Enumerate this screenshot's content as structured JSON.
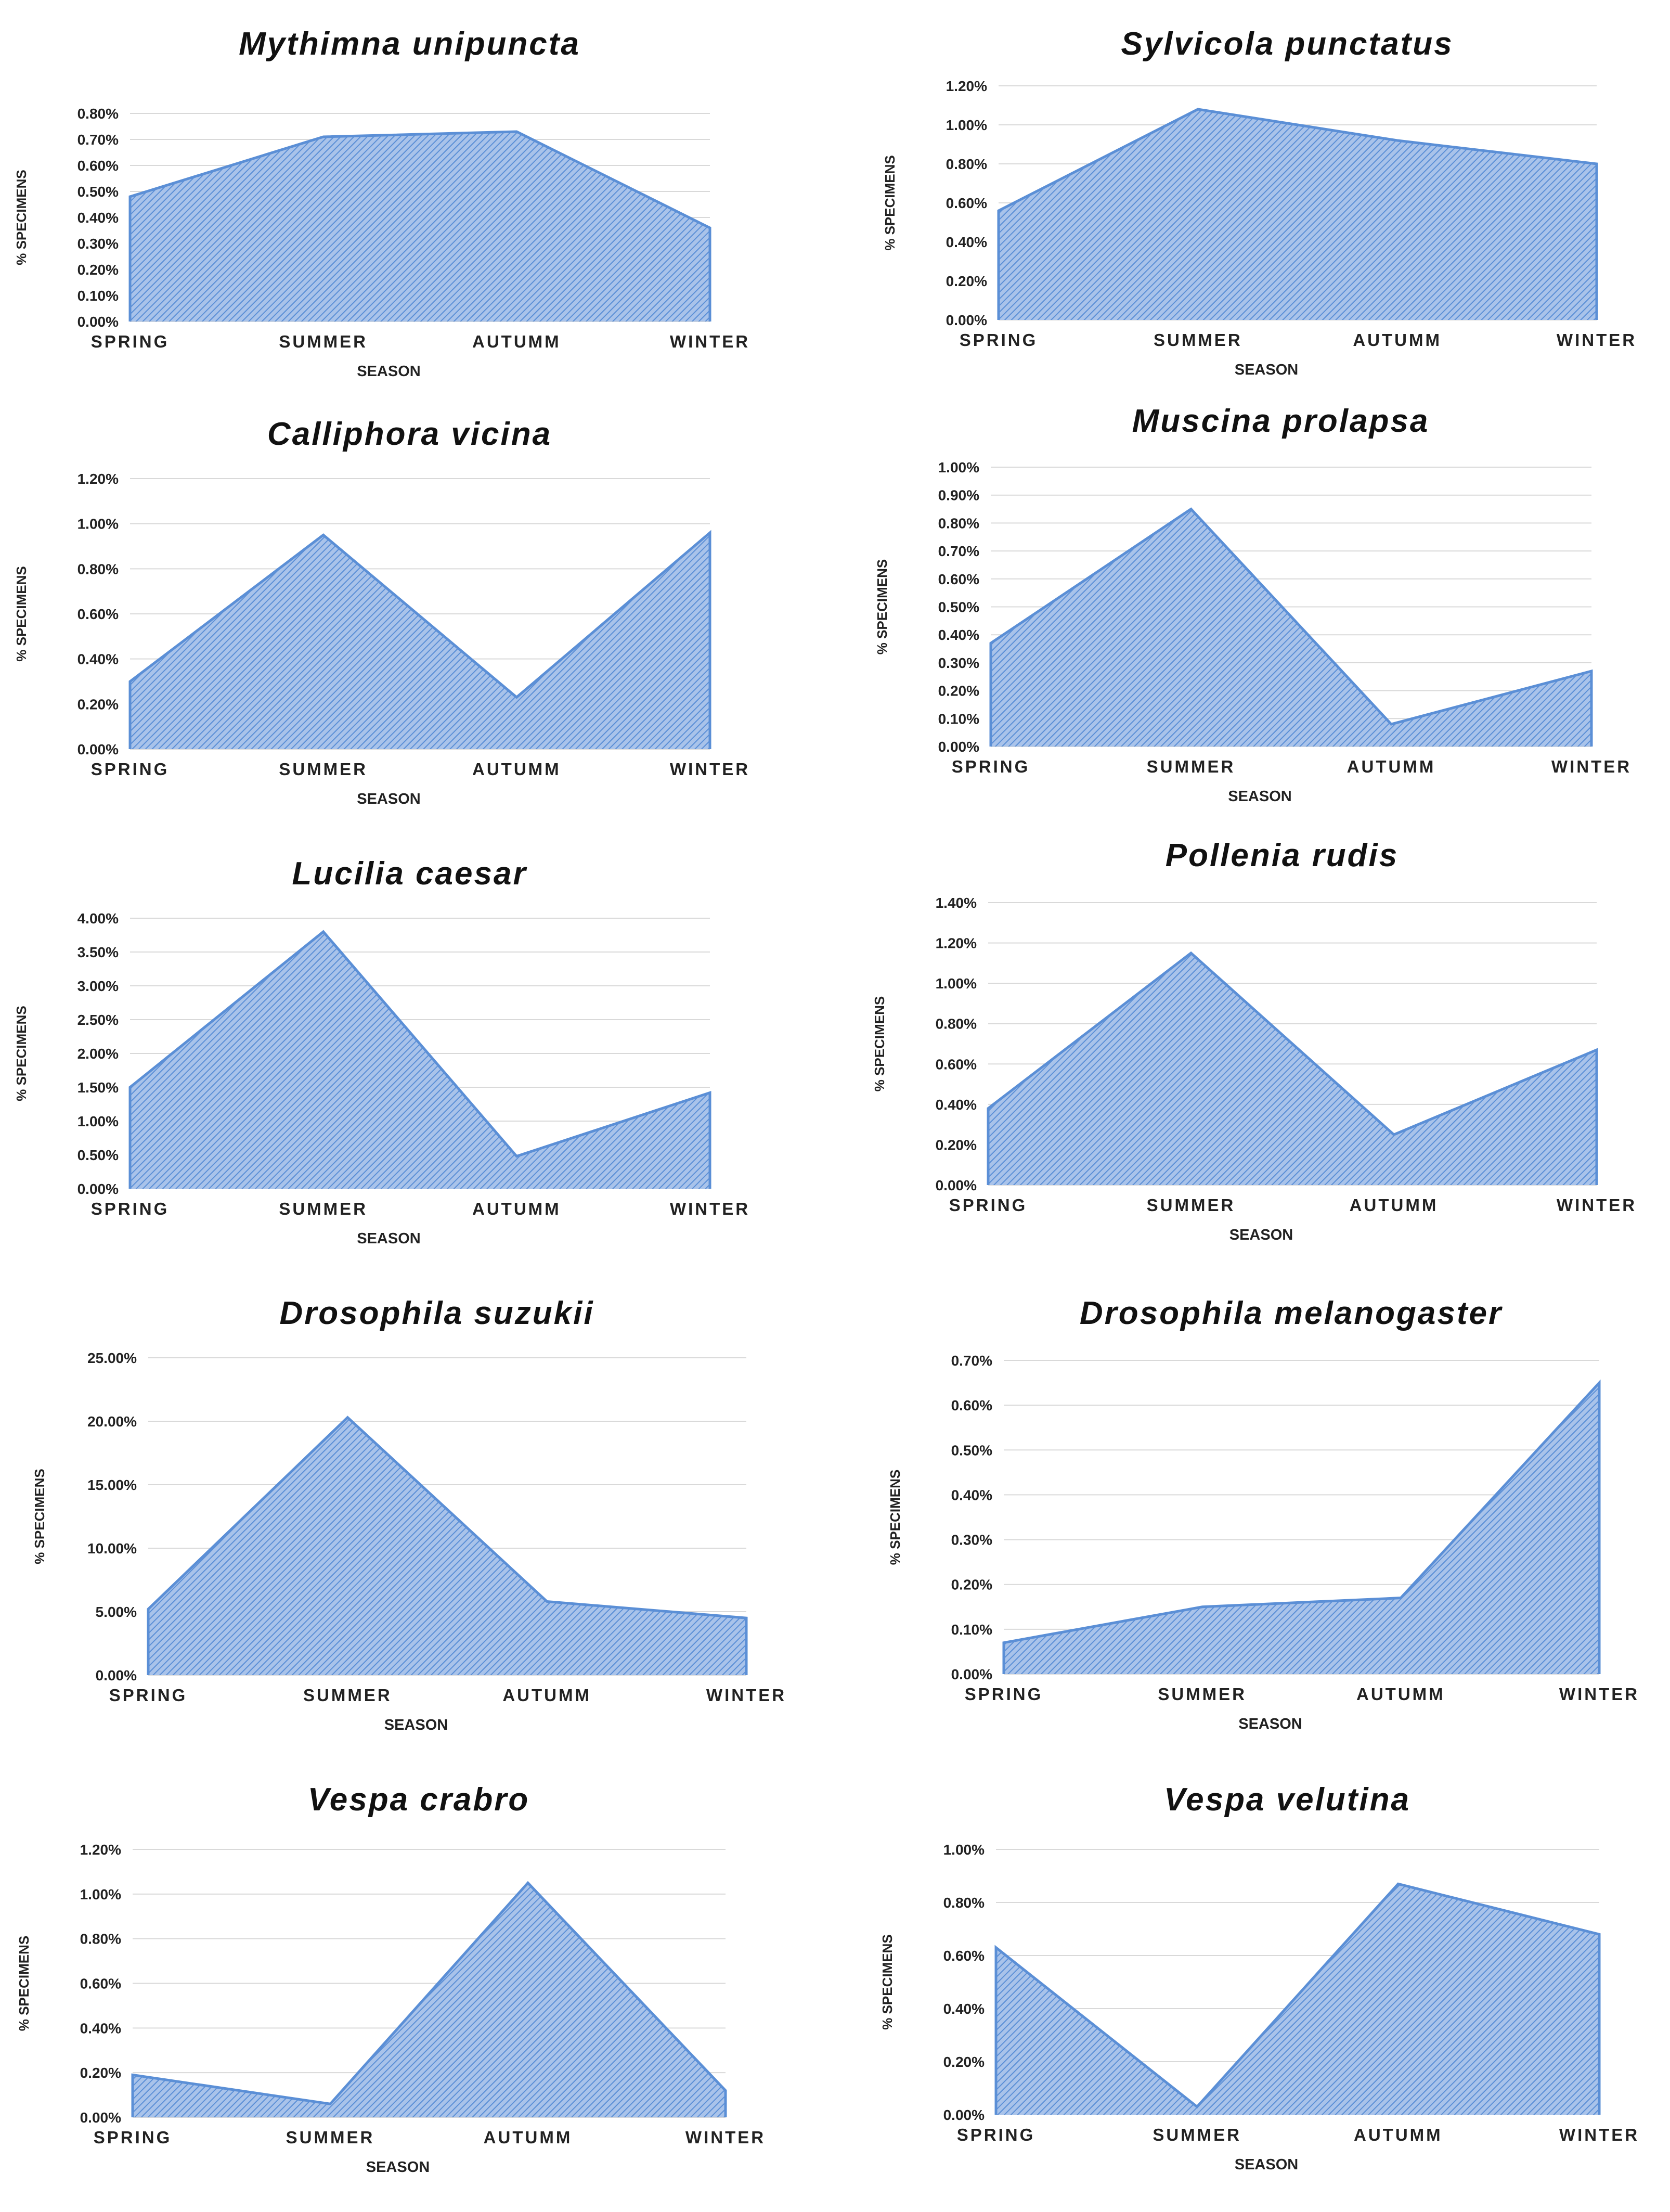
{
  "figure": {
    "xlabel": "SEASON",
    "ylabel": "% SPECIMENS",
    "colors": {
      "fill": "#a9c3ea",
      "hatch": "#5b8fd6",
      "outline": "#5b8fd6",
      "grid": "#d9d9d9"
    }
  },
  "chart_data": [
    {
      "type": "area",
      "title": "Mythimna unipuncta",
      "categories": [
        "SPRING",
        "SUMMER",
        "AUTUMM",
        "WINTER"
      ],
      "series": [
        {
          "name": "% SPECIMENS",
          "values": [
            0.48,
            0.71,
            0.73,
            0.36
          ]
        }
      ],
      "yticks": [
        "0.00%",
        "0.10%",
        "0.20%",
        "0.30%",
        "0.40%",
        "0.50%",
        "0.60%",
        "0.70%",
        "0.80%"
      ],
      "ylim": [
        0,
        0.8
      ],
      "xlabel": "SEASON",
      "ylabel": "% SPECIMENS"
    },
    {
      "type": "area",
      "title": "Sylvicola punctatus",
      "categories": [
        "SPRING",
        "SUMMER",
        "AUTUMM",
        "WINTER"
      ],
      "series": [
        {
          "name": "% SPECIMENS",
          "values": [
            0.56,
            1.08,
            0.92,
            0.8
          ]
        }
      ],
      "yticks": [
        "0.00%",
        "0.20%",
        "0.40%",
        "0.60%",
        "0.80%",
        "1.00%",
        "1.20%"
      ],
      "ylim": [
        0,
        1.2
      ],
      "xlabel": "SEASON",
      "ylabel": "% SPECIMENS"
    },
    {
      "type": "area",
      "title": "Calliphora vicina",
      "categories": [
        "SPRING",
        "SUMMER",
        "AUTUMM",
        "WINTER"
      ],
      "series": [
        {
          "name": "% SPECIMENS",
          "values": [
            0.3,
            0.95,
            0.23,
            0.96
          ]
        }
      ],
      "yticks": [
        "0.00%",
        "0.20%",
        "0.40%",
        "0.60%",
        "0.80%",
        "1.00%",
        "1.20%"
      ],
      "ylim": [
        0,
        1.2
      ],
      "xlabel": "SEASON",
      "ylabel": "% SPECIMENS"
    },
    {
      "type": "area",
      "title": "Muscina prolapsa",
      "categories": [
        "SPRING",
        "SUMMER",
        "AUTUMM",
        "WINTER"
      ],
      "series": [
        {
          "name": "% SPECIMENS",
          "values": [
            0.37,
            0.85,
            0.08,
            0.27
          ]
        }
      ],
      "yticks": [
        "0.00%",
        "0.10%",
        "0.20%",
        "0.30%",
        "0.40%",
        "0.50%",
        "0.60%",
        "0.70%",
        "0.80%",
        "0.90%",
        "1.00%"
      ],
      "ylim": [
        0,
        1.0
      ],
      "xlabel": "SEASON",
      "ylabel": "% SPECIMENS"
    },
    {
      "type": "area",
      "title": "Lucilia caesar",
      "categories": [
        "SPRING",
        "SUMMER",
        "AUTUMM",
        "WINTER"
      ],
      "series": [
        {
          "name": "% SPECIMENS",
          "values": [
            1.5,
            3.8,
            0.48,
            1.42
          ]
        }
      ],
      "yticks": [
        "0.00%",
        "0.50%",
        "1.00%",
        "1.50%",
        "2.00%",
        "2.50%",
        "3.00%",
        "3.50%",
        "4.00%"
      ],
      "ylim": [
        0,
        4.0
      ],
      "xlabel": "SEASON",
      "ylabel": "% SPECIMENS"
    },
    {
      "type": "area",
      "title": "Pollenia rudis",
      "categories": [
        "SPRING",
        "SUMMER",
        "AUTUMM",
        "WINTER"
      ],
      "series": [
        {
          "name": "% SPECIMENS",
          "values": [
            0.38,
            1.15,
            0.25,
            0.67
          ]
        }
      ],
      "yticks": [
        "0.00%",
        "0.20%",
        "0.40%",
        "0.60%",
        "0.80%",
        "1.00%",
        "1.20%",
        "1.40%"
      ],
      "ylim": [
        0,
        1.4
      ],
      "xlabel": "SEASON",
      "ylabel": "% SPECIMENS"
    },
    {
      "type": "area",
      "title": "Drosophila suzukii",
      "categories": [
        "SPRING",
        "SUMMER",
        "AUTUMM",
        "WINTER"
      ],
      "series": [
        {
          "name": "% SPECIMENS",
          "values": [
            5.2,
            20.3,
            5.8,
            4.5
          ]
        }
      ],
      "yticks": [
        "0.00%",
        "5.00%",
        "10.00%",
        "15.00%",
        "20.00%",
        "25.00%"
      ],
      "ylim": [
        0,
        25
      ],
      "xlabel": "SEASON",
      "ylabel": "% SPECIMENS"
    },
    {
      "type": "area",
      "title": "Drosophila melanogaster",
      "categories": [
        "SPRING",
        "SUMMER",
        "AUTUMM",
        "WINTER"
      ],
      "series": [
        {
          "name": "% SPECIMENS",
          "values": [
            0.07,
            0.15,
            0.17,
            0.65
          ]
        }
      ],
      "yticks": [
        "0.00%",
        "0.10%",
        "0.20%",
        "0.30%",
        "0.40%",
        "0.50%",
        "0.60%",
        "0.70%"
      ],
      "ylim": [
        0,
        0.7
      ],
      "xlabel": "SEASON",
      "ylabel": "% SPECIMENS"
    },
    {
      "type": "area",
      "title": "Vespa crabro",
      "categories": [
        "SPRING",
        "SUMMER",
        "AUTUMM",
        "WINTER"
      ],
      "series": [
        {
          "name": "% SPECIMENS",
          "values": [
            0.19,
            0.06,
            1.05,
            0.12
          ]
        }
      ],
      "yticks": [
        "0.00%",
        "0.20%",
        "0.40%",
        "0.60%",
        "0.80%",
        "1.00%",
        "1.20%"
      ],
      "ylim": [
        0,
        1.2
      ],
      "xlabel": "SEASON",
      "ylabel": "% SPECIMENS"
    },
    {
      "type": "area",
      "title": "Vespa velutina",
      "categories": [
        "SPRING",
        "SUMMER",
        "AUTUMM",
        "WINTER"
      ],
      "series": [
        {
          "name": "% SPECIMENS",
          "values": [
            0.63,
            0.03,
            0.87,
            0.68
          ]
        }
      ],
      "yticks": [
        "0.00%",
        "0.20%",
        "0.40%",
        "0.60%",
        "0.80%",
        "1.00%"
      ],
      "ylim": [
        0,
        1.0
      ],
      "xlabel": "SEASON",
      "ylabel": "% SPECIMENS"
    }
  ]
}
